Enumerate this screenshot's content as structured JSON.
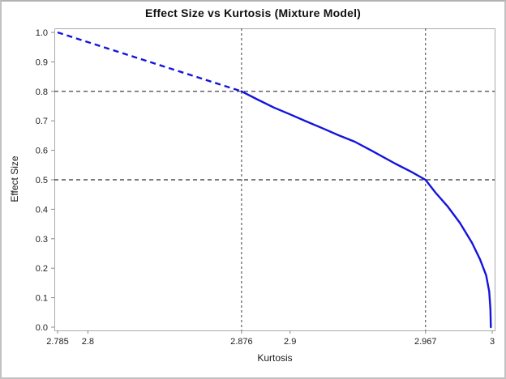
{
  "chart_data": {
    "type": "line",
    "title": "Effect Size vs Kurtosis (Mixture Model)",
    "xlabel": "Kurtosis",
    "ylabel": "Effect Size",
    "xlim": [
      2.785,
      3.0
    ],
    "ylim": [
      0.0,
      1.0
    ],
    "grid": false,
    "legend": "none",
    "x_ticks": [
      2.785,
      2.8,
      2.876,
      2.9,
      2.967,
      3.0
    ],
    "x_tick_labels": [
      "2.785",
      "2.8",
      "2.876",
      "2.9",
      "2.967",
      "3"
    ],
    "y_ticks": [
      0.0,
      0.1,
      0.2,
      0.3,
      0.4,
      0.5,
      0.6,
      0.7,
      0.8,
      0.9,
      1.0
    ],
    "y_tick_labels": [
      "0.0",
      "0.1",
      "0.2",
      "0.3",
      "0.4",
      "0.5",
      "0.6",
      "0.7",
      "0.8",
      "0.9",
      "1.0"
    ],
    "reference_lines": {
      "x": [
        2.876,
        2.967
      ],
      "y": [
        0.8,
        0.5
      ]
    },
    "series": [
      {
        "name": "effect-size-dashed-segment",
        "style": "dashed",
        "color": "#1414DE",
        "points": [
          [
            2.785,
            1.0
          ],
          [
            2.876,
            0.8
          ]
        ]
      },
      {
        "name": "effect-size-curve",
        "style": "solid",
        "color": "#1414DE",
        "points": [
          [
            2.876,
            0.8
          ],
          [
            2.884,
            0.772
          ],
          [
            2.892,
            0.745
          ],
          [
            2.9,
            0.722
          ],
          [
            2.908,
            0.698
          ],
          [
            2.916,
            0.675
          ],
          [
            2.924,
            0.651
          ],
          [
            2.932,
            0.629
          ],
          [
            2.94,
            0.6
          ],
          [
            2.952,
            0.555
          ],
          [
            2.96,
            0.527
          ],
          [
            2.967,
            0.5
          ],
          [
            2.972,
            0.456
          ],
          [
            2.978,
            0.409
          ],
          [
            2.984,
            0.354
          ],
          [
            2.99,
            0.286
          ],
          [
            2.994,
            0.23
          ],
          [
            2.997,
            0.176
          ],
          [
            2.9985,
            0.121
          ],
          [
            2.9991,
            0.06
          ],
          [
            2.9993,
            0.0
          ]
        ]
      }
    ],
    "colors": {
      "curve": "#1414DE",
      "h_reference_line": "#2e2e2e",
      "v_reference_line": "#5e5e5e",
      "frame": "#ababab",
      "tick_mark": "#8a8a8a",
      "tick_text": "#1f1f1f",
      "background": "#ffffff"
    }
  }
}
